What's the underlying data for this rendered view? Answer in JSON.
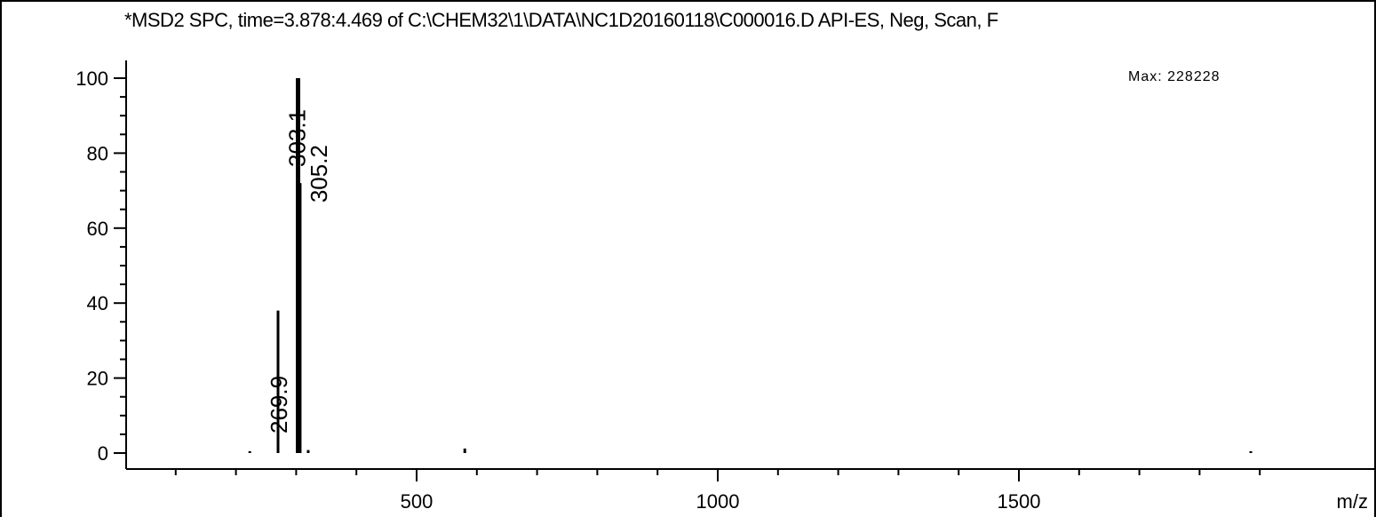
{
  "header": {
    "title": "*MSD2 SPC, time=3.878:4.469 of C:\\CHEM32\\1\\DATA\\NC1D20160118\\C000016.D    API-ES, Neg, Scan, F",
    "max_label": "Max:  228228"
  },
  "chart_data": {
    "type": "bar",
    "xlabel": "m/z",
    "ylabel": "",
    "xlim": [
      0,
      1600
    ],
    "ylim": [
      0,
      100
    ],
    "x_ticks": [
      500,
      1000,
      1500
    ],
    "y_ticks": [
      0,
      20,
      40,
      60,
      80,
      100
    ],
    "grid": false,
    "peaks": [
      {
        "x": 223,
        "y": 0.5,
        "label": ""
      },
      {
        "x": 269.9,
        "y": 38,
        "label": "269.9"
      },
      {
        "x": 303.1,
        "y": 100,
        "label": "303.1"
      },
      {
        "x": 305.2,
        "y": 72,
        "label": "305.2"
      },
      {
        "x": 320,
        "y": 0.8,
        "label": ""
      },
      {
        "x": 580,
        "y": 1.2,
        "label": ""
      },
      {
        "x": 1885,
        "y": 0.5,
        "label": ""
      }
    ]
  }
}
